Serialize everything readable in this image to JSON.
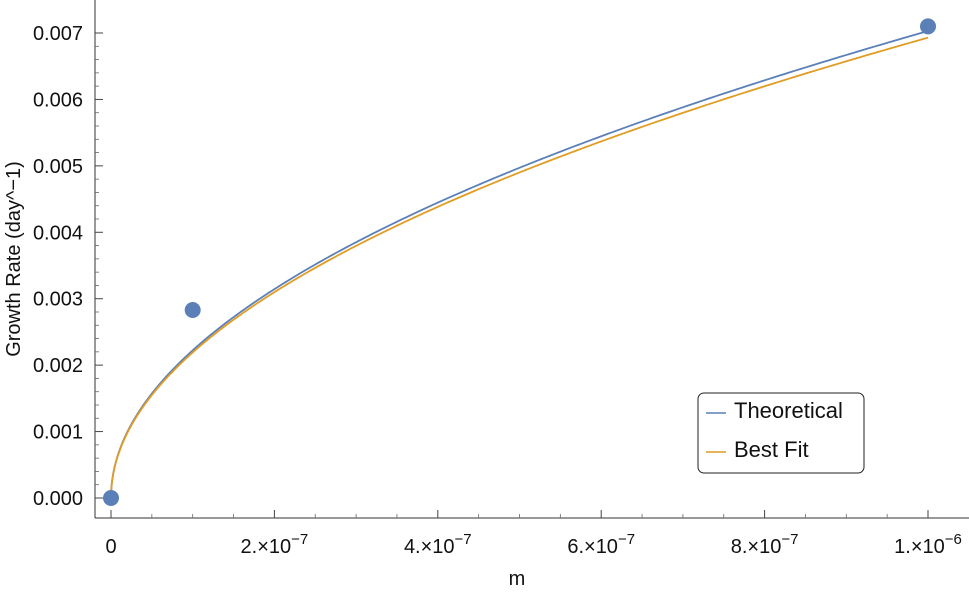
{
  "chart_data": {
    "type": "scatter",
    "xlabel": "m",
    "ylabel": "Growth Rate (day^−1)",
    "xlim": [
      -5e-09,
      1.01e-06
    ],
    "ylim": [
      -0.00015,
      0.0074
    ],
    "x_ticks": [
      {
        "value": 0,
        "mantissa": "0",
        "exponent": ""
      },
      {
        "value": 2e-07,
        "mantissa": "2.×10",
        "exponent": "−7"
      },
      {
        "value": 4e-07,
        "mantissa": "4.×10",
        "exponent": "−7"
      },
      {
        "value": 6e-07,
        "mantissa": "6.×10",
        "exponent": "−7"
      },
      {
        "value": 8e-07,
        "mantissa": "8.×10",
        "exponent": "−7"
      },
      {
        "value": 1e-06,
        "mantissa": "1.×10",
        "exponent": "−6"
      }
    ],
    "y_ticks": [
      {
        "value": 0,
        "label": "0.000"
      },
      {
        "value": 0.001,
        "label": "0.001"
      },
      {
        "value": 0.002,
        "label": "0.002"
      },
      {
        "value": 0.003,
        "label": "0.003"
      },
      {
        "value": 0.004,
        "label": "0.004"
      },
      {
        "value": 0.005,
        "label": "0.005"
      },
      {
        "value": 0.006,
        "label": "0.006"
      },
      {
        "value": 0.007,
        "label": "0.007"
      }
    ],
    "points": {
      "color": "#5b80b8",
      "x": [
        0,
        1e-07,
        1e-06
      ],
      "y": [
        0.0,
        0.00283,
        0.0071
      ]
    },
    "series": [
      {
        "name": "Theoretical",
        "color": "#5b80b8",
        "coefficient": 7.03,
        "exponent": 0.5
      },
      {
        "name": "Best Fit",
        "color": "#e19c24",
        "coefficient": 6.93,
        "exponent": 0.5
      }
    ],
    "legend_position": "bottom-right",
    "grid": false
  }
}
